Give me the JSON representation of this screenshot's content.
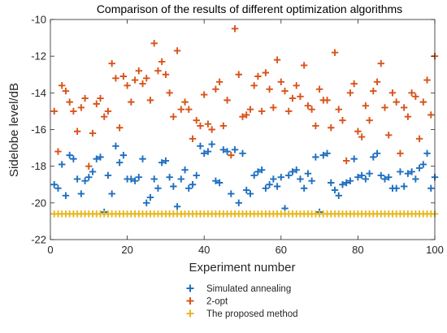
{
  "chart_data": {
    "type": "scatter",
    "title": "Comparison of the results of different optimization algorithms",
    "xlabel": "Experiment number",
    "ylabel": "Sidelobe level/dB",
    "xlim": [
      0,
      100
    ],
    "ylim": [
      -22,
      -10
    ],
    "xticks": [
      0,
      20,
      40,
      60,
      80,
      100
    ],
    "yticks": [
      -22,
      -20,
      -18,
      -16,
      -14,
      -12,
      -10
    ],
    "grid": false,
    "legend_position": "bottom-center",
    "series": [
      {
        "name": "Simulated annealing",
        "color": "#1f6fc0",
        "x": [
          1,
          2,
          3,
          4,
          5,
          6,
          7,
          8,
          9,
          10,
          11,
          12,
          13,
          14,
          15,
          16,
          17,
          18,
          19,
          20,
          21,
          22,
          23,
          24,
          25,
          26,
          27,
          28,
          29,
          30,
          31,
          32,
          33,
          34,
          35,
          36,
          37,
          38,
          39,
          40,
          41,
          42,
          43,
          44,
          45,
          46,
          47,
          48,
          49,
          50,
          51,
          52,
          53,
          54,
          55,
          56,
          57,
          58,
          59,
          60,
          61,
          62,
          63,
          64,
          65,
          66,
          67,
          68,
          69,
          70,
          71,
          72,
          73,
          74,
          75,
          76,
          77,
          78,
          79,
          80,
          81,
          82,
          83,
          84,
          85,
          86,
          87,
          88,
          89,
          90,
          91,
          92,
          93,
          94,
          95,
          96,
          97,
          98,
          99,
          100
        ],
        "values": [
          -19.0,
          -19.2,
          -17.9,
          -19.6,
          -17.4,
          -17.6,
          -18.7,
          -19.5,
          -18.8,
          -18.6,
          -18.3,
          -17.6,
          -17.5,
          -20.5,
          -18.5,
          -19.5,
          -16.9,
          -17.8,
          -17.4,
          -18.7,
          -18.7,
          -18.8,
          -18.6,
          -17.6,
          -20.0,
          -19.7,
          -18.7,
          -19.2,
          -17.8,
          -17.7,
          -18.6,
          -19.1,
          -20.2,
          -18.7,
          -18.2,
          -19.2,
          -19.0,
          -18.5,
          -16.9,
          -17.3,
          -17.2,
          -16.8,
          -18.8,
          -18.9,
          -17.1,
          -17.2,
          -19.5,
          -17.1,
          -20.0,
          -17.3,
          -19.3,
          -19.5,
          -18.5,
          -18.3,
          -18.2,
          -19.2,
          -19.0,
          -18.7,
          -19.1,
          -18.6,
          -20.3,
          -18.5,
          -18.3,
          -18.2,
          -18.7,
          -19.2,
          -18.4,
          -18.8,
          -17.5,
          -20.5,
          -17.4,
          -17.3,
          -18.9,
          -19.3,
          -19.6,
          -19.0,
          -18.9,
          -18.8,
          -17.6,
          -18.6,
          -18.5,
          -18.7,
          -18.4,
          -17.5,
          -17.3,
          -18.5,
          -18.7,
          -18.6,
          -19.2,
          -19.2,
          -18.3,
          -19.1,
          -18.4,
          -18.3,
          -18.7,
          -18.1,
          -17.9,
          -17.3,
          -19.2,
          -18.6
        ]
      },
      {
        "name": "2-opt",
        "color": "#d95319",
        "x": [
          1,
          2,
          3,
          4,
          5,
          6,
          7,
          8,
          9,
          10,
          11,
          12,
          13,
          14,
          15,
          16,
          17,
          18,
          19,
          20,
          21,
          22,
          23,
          24,
          25,
          26,
          27,
          28,
          29,
          30,
          31,
          32,
          33,
          34,
          35,
          36,
          37,
          38,
          39,
          40,
          41,
          42,
          43,
          44,
          45,
          46,
          47,
          48,
          49,
          50,
          51,
          52,
          53,
          54,
          55,
          56,
          57,
          58,
          59,
          60,
          61,
          62,
          63,
          64,
          65,
          66,
          67,
          68,
          69,
          70,
          71,
          72,
          73,
          74,
          75,
          76,
          77,
          78,
          79,
          80,
          81,
          82,
          83,
          84,
          85,
          86,
          87,
          88,
          89,
          90,
          91,
          92,
          93,
          94,
          95,
          96,
          97,
          98,
          99,
          100
        ],
        "values": [
          -15.0,
          -17.2,
          -13.6,
          -13.9,
          -14.5,
          -15.0,
          -16.1,
          -14.8,
          -14.3,
          -18.0,
          -16.2,
          -14.6,
          -14.3,
          -15.3,
          -15.0,
          -12.4,
          -13.2,
          -15.9,
          -13.1,
          -13.6,
          -14.5,
          -13.3,
          -12.8,
          -13.5,
          -13.2,
          -14.4,
          -11.3,
          -12.8,
          -12.3,
          -13.0,
          -14.0,
          -15.3,
          -11.7,
          -14.9,
          -14.5,
          -14.9,
          -16.5,
          -15.5,
          -15.8,
          -14.1,
          -15.7,
          -16.0,
          -13.8,
          -13.4,
          -15.8,
          -14.4,
          -17.4,
          -10.5,
          -13.0,
          -15.3,
          -15.2,
          -14.9,
          -13.6,
          -13.1,
          -15.0,
          -12.9,
          -13.8,
          -14.8,
          -12.2,
          -13.4,
          -13.9,
          -15.0,
          -14.3,
          -13.6,
          -14.2,
          -12.5,
          -14.7,
          -14.9,
          -15.8,
          -13.8,
          -14.4,
          -14.4,
          -15.9,
          -11.8,
          -14.9,
          -15.5,
          -17.7,
          -14.0,
          -13.5,
          -16.1,
          -16.4,
          -14.7,
          -15.5,
          -13.9,
          -13.4,
          -12.4,
          -14.8,
          -16.3,
          -14.0,
          -14.5,
          -17.3,
          -14.8,
          -15.3,
          -14.0,
          -14.2,
          -16.5,
          -14.5,
          -13.3,
          -15.2,
          -12.0
        ]
      },
      {
        "name": "The proposed method",
        "color": "#e8b820",
        "x": [
          1,
          2,
          3,
          4,
          5,
          6,
          7,
          8,
          9,
          10,
          11,
          12,
          13,
          14,
          15,
          16,
          17,
          18,
          19,
          20,
          21,
          22,
          23,
          24,
          25,
          26,
          27,
          28,
          29,
          30,
          31,
          32,
          33,
          34,
          35,
          36,
          37,
          38,
          39,
          40,
          41,
          42,
          43,
          44,
          45,
          46,
          47,
          48,
          49,
          50,
          51,
          52,
          53,
          54,
          55,
          56,
          57,
          58,
          59,
          60,
          61,
          62,
          63,
          64,
          65,
          66,
          67,
          68,
          69,
          70,
          71,
          72,
          73,
          74,
          75,
          76,
          77,
          78,
          79,
          80,
          81,
          82,
          83,
          84,
          85,
          86,
          87,
          88,
          89,
          90,
          91,
          92,
          93,
          94,
          95,
          96,
          97,
          98,
          99,
          100
        ],
        "values": [
          -20.6,
          -20.6,
          -20.6,
          -20.6,
          -20.6,
          -20.6,
          -20.6,
          -20.6,
          -20.6,
          -20.6,
          -20.6,
          -20.6,
          -20.6,
          -20.6,
          -20.6,
          -20.6,
          -20.6,
          -20.6,
          -20.6,
          -20.6,
          -20.6,
          -20.6,
          -20.6,
          -20.6,
          -20.6,
          -20.6,
          -20.6,
          -20.6,
          -20.6,
          -20.6,
          -20.6,
          -20.6,
          -20.6,
          -20.6,
          -20.6,
          -20.6,
          -20.6,
          -20.6,
          -20.6,
          -20.6,
          -20.6,
          -20.6,
          -20.6,
          -20.6,
          -20.6,
          -20.6,
          -20.6,
          -20.6,
          -20.6,
          -20.6,
          -20.6,
          -20.6,
          -20.6,
          -20.6,
          -20.6,
          -20.6,
          -20.6,
          -20.6,
          -20.6,
          -20.6,
          -20.6,
          -20.6,
          -20.6,
          -20.6,
          -20.6,
          -20.6,
          -20.6,
          -20.6,
          -20.6,
          -20.6,
          -20.6,
          -20.6,
          -20.6,
          -20.6,
          -20.6,
          -20.6,
          -20.6,
          -20.6,
          -20.6,
          -20.6,
          -20.6,
          -20.6,
          -20.6,
          -20.6,
          -20.6,
          -20.6,
          -20.6,
          -20.6,
          -20.6,
          -20.6,
          -20.6,
          -20.6,
          -20.6,
          -20.6,
          -20.6,
          -20.6,
          -20.6,
          -20.6,
          -20.6,
          -20.6
        ]
      }
    ]
  }
}
